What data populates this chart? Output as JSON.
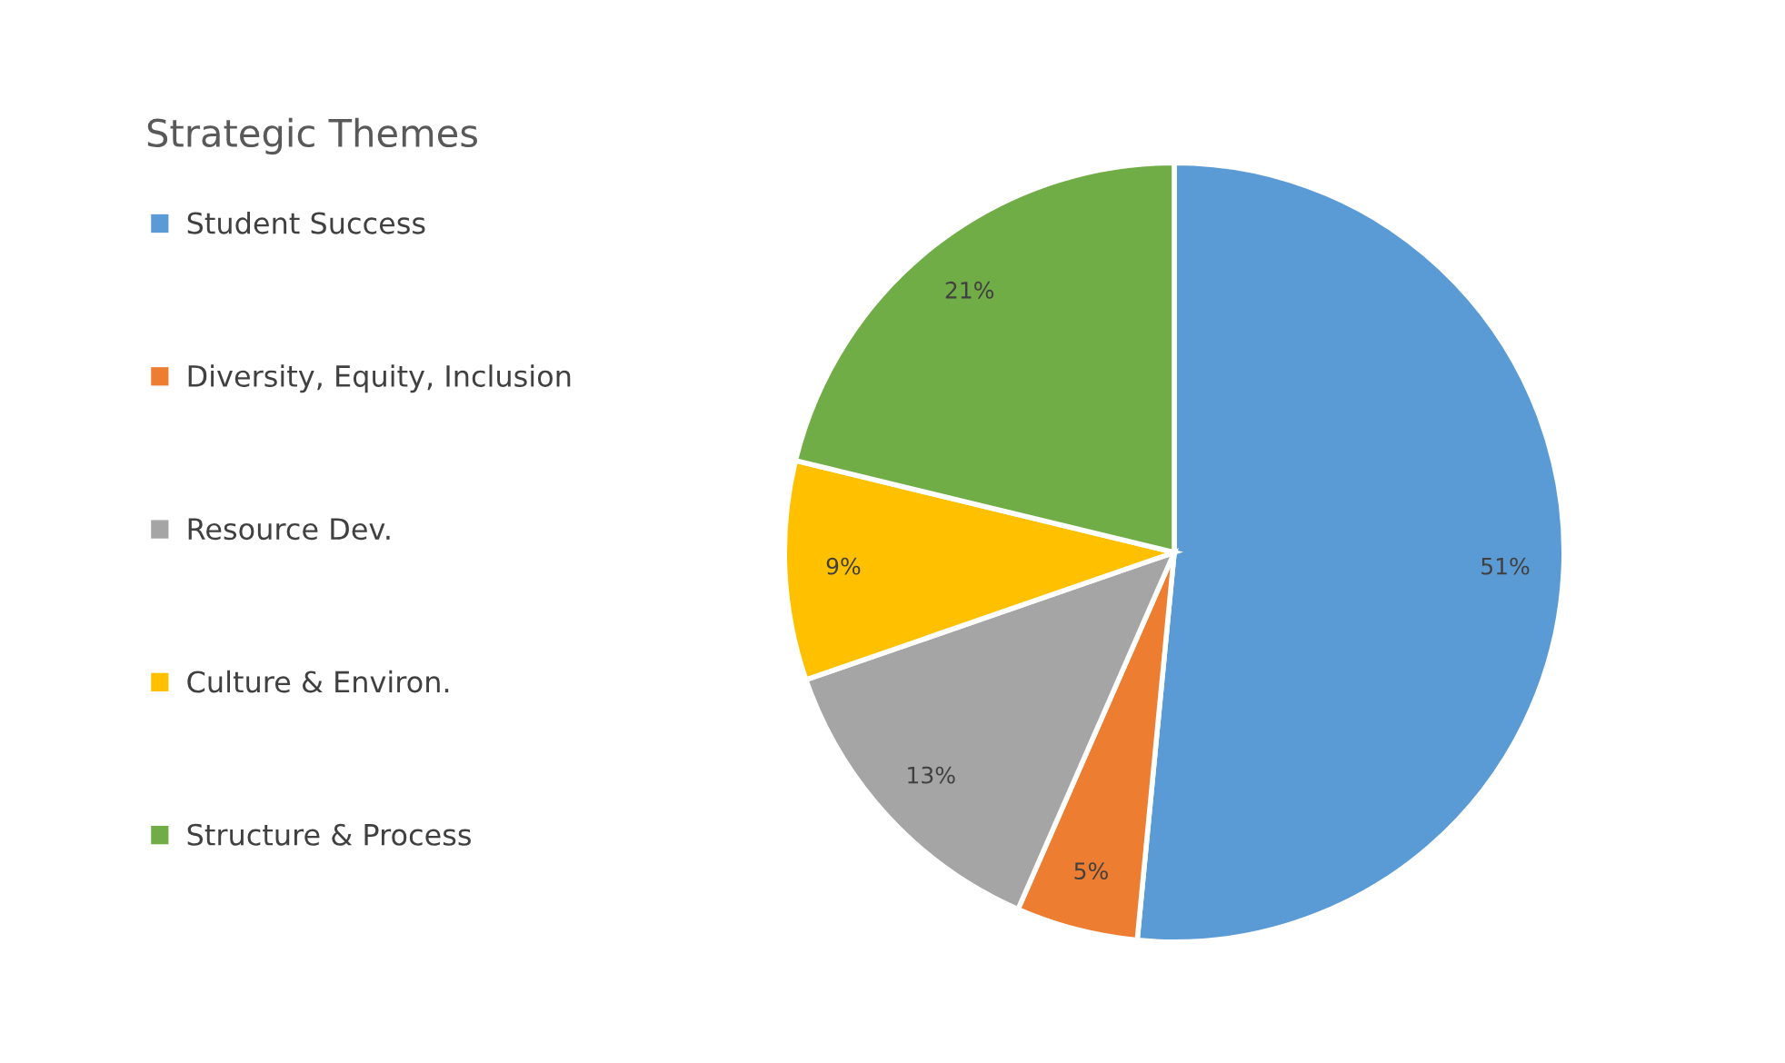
{
  "chart_data": {
    "type": "pie",
    "title": "Strategic Themes",
    "categories": [
      "Student Success",
      "Diversity, Equity, Inclusion",
      "Resource Dev.",
      "Culture & Environ.",
      "Structure & Process"
    ],
    "values": [
      51,
      5,
      13,
      9,
      21
    ],
    "colors": [
      "#5b9bd5",
      "#ed7d31",
      "#a5a5a5",
      "#ffc000",
      "#70ad47"
    ],
    "value_labels": [
      "51%",
      "5%",
      "13%",
      "9%",
      "21%"
    ],
    "legend": "left"
  }
}
